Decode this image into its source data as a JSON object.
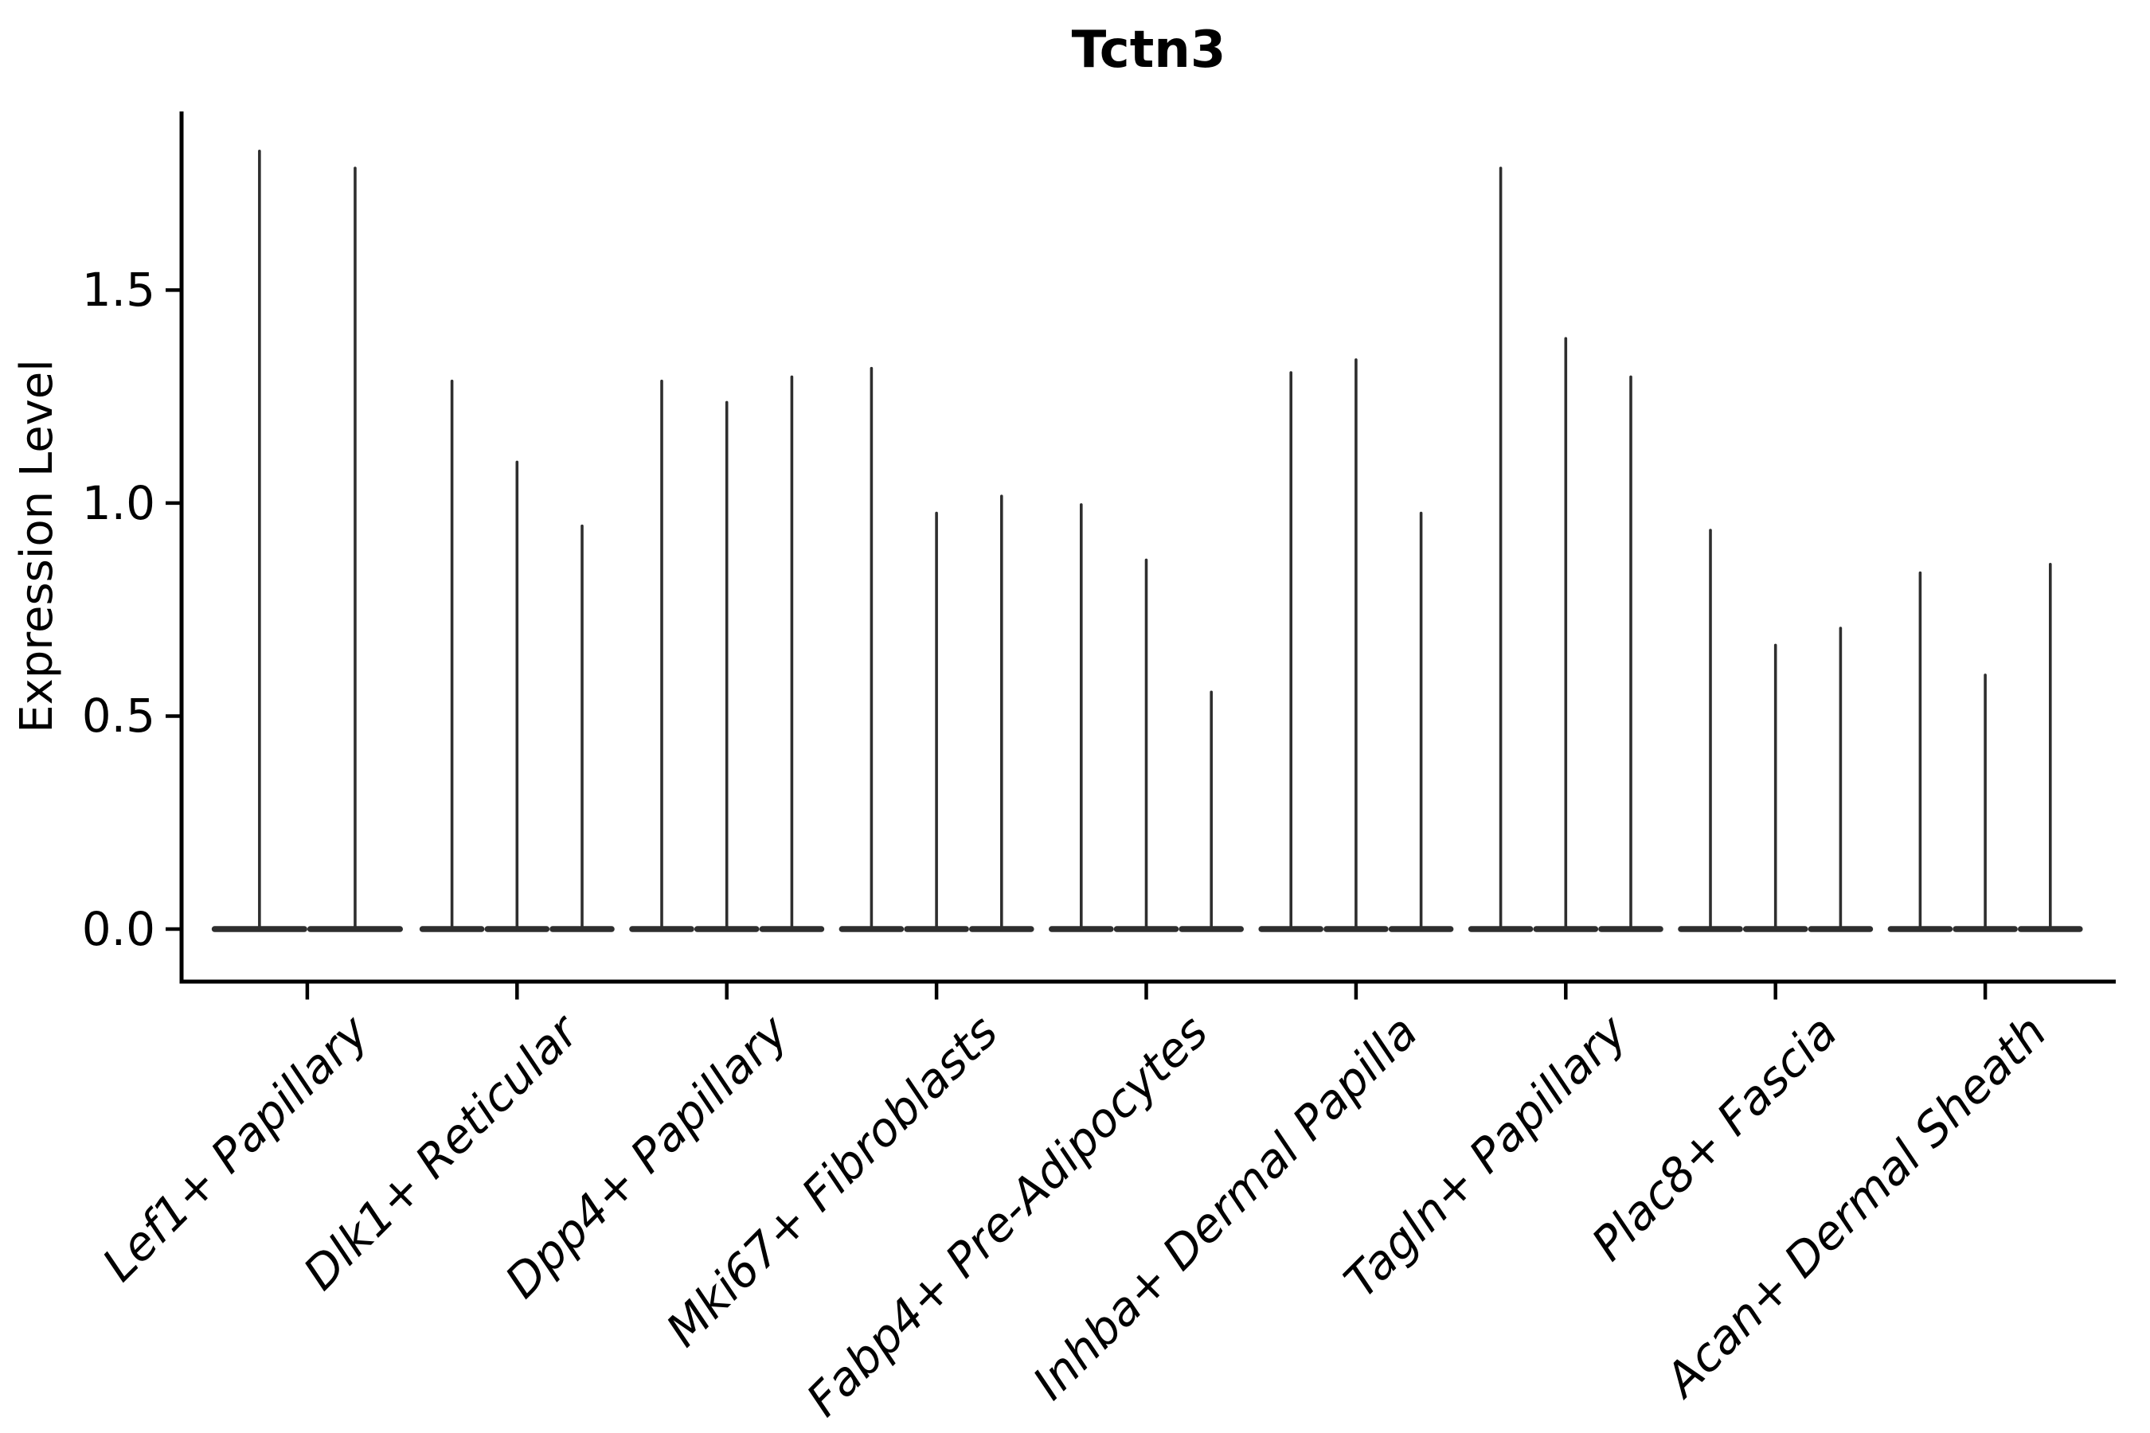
{
  "chart_data": {
    "type": "violin",
    "title": "Tctn3",
    "ylabel": "Expression Level",
    "xlabel": "",
    "grid": false,
    "legend": null,
    "ylim": [
      0,
      1.92
    ],
    "ytick_labels": [
      "0.0",
      "0.5",
      "1.0",
      "1.5"
    ],
    "ytick_values": [
      0.0,
      0.5,
      1.0,
      1.5
    ],
    "categories": [
      "Lef1+ Papillary",
      "Dlk1+ Reticular",
      "Dpp4+ Papillary",
      "Mki67+ Fibroblasts",
      "Fabp4+ Pre-Adipocytes",
      "Inhba+ Dermal Papilla",
      "Tagln+ Papillary",
      "Plac8+ Fascia",
      "Acan+ Dermal Sheath"
    ],
    "groups": [
      {
        "label": "Lef1+ Papillary",
        "violin_maxima": [
          1.83,
          1.79
        ]
      },
      {
        "label": "Dlk1+ Reticular",
        "violin_maxima": [
          1.29,
          1.1,
          0.95
        ]
      },
      {
        "label": "Dpp4+ Papillary",
        "violin_maxima": [
          1.29,
          1.24,
          1.3
        ]
      },
      {
        "label": "Mki67+ Fibroblasts",
        "violin_maxima": [
          1.32,
          0.98,
          1.02
        ]
      },
      {
        "label": "Fabp4+ Pre-Adipocytes",
        "violin_maxima": [
          1.0,
          0.87,
          0.56
        ]
      },
      {
        "label": "Inhba+ Dermal Papilla",
        "violin_maxima": [
          1.31,
          1.34,
          0.98
        ]
      },
      {
        "label": "Tagln+ Papillary",
        "violin_maxima": [
          1.79,
          1.39,
          1.3
        ]
      },
      {
        "label": "Plac8+ Fascia",
        "violin_maxima": [
          0.94,
          0.67,
          0.71
        ]
      },
      {
        "label": "Acan+ Dermal Sheath",
        "violin_maxima": [
          0.84,
          0.6,
          0.86
        ]
      }
    ],
    "violin_baseline_value": 0.0,
    "colors": {
      "violin": "#2e2e2e",
      "axis": "#000000",
      "text": "#000000",
      "background": "#ffffff"
    }
  }
}
